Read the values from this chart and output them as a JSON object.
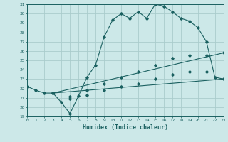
{
  "xlabel": "Humidex (Indice chaleur)",
  "bg_color": "#cce8e8",
  "grid_color": "#aacccc",
  "line_color": "#1a6060",
  "xlim": [
    0,
    23
  ],
  "ylim": [
    19,
    31
  ],
  "xticks": [
    0,
    1,
    2,
    3,
    4,
    5,
    6,
    7,
    8,
    9,
    10,
    11,
    12,
    13,
    14,
    15,
    16,
    17,
    18,
    19,
    20,
    21,
    22,
    23
  ],
  "yticks": [
    19,
    20,
    21,
    22,
    23,
    24,
    25,
    26,
    27,
    28,
    29,
    30,
    31
  ],
  "line1_x": [
    0,
    1,
    2,
    3,
    4,
    5,
    6,
    7,
    8,
    9,
    10,
    11,
    12,
    13,
    14,
    15,
    16,
    17,
    18,
    19,
    20,
    21,
    22,
    23
  ],
  "line1_y": [
    22.2,
    21.8,
    21.5,
    21.5,
    20.5,
    19.3,
    21.2,
    23.2,
    24.5,
    27.5,
    29.3,
    30.0,
    29.5,
    30.2,
    29.5,
    31.0,
    30.8,
    30.2,
    29.5,
    29.2,
    28.5,
    27.0,
    23.2,
    23.0
  ],
  "line2_x": [
    3,
    23
  ],
  "line2_y": [
    21.5,
    25.8
  ],
  "line3_x": [
    3,
    23
  ],
  "line3_y": [
    21.5,
    23.0
  ],
  "marker_x2": [
    3,
    5,
    7,
    9,
    11,
    13,
    15,
    17,
    19,
    21,
    23
  ],
  "marker_y2": [
    21.5,
    21.1,
    21.8,
    22.5,
    23.2,
    23.8,
    24.5,
    25.2,
    25.5,
    25.5,
    25.8
  ],
  "marker_x3": [
    3,
    5,
    7,
    9,
    11,
    13,
    15,
    17,
    19,
    21,
    23
  ],
  "marker_y3": [
    21.5,
    20.9,
    21.3,
    21.8,
    22.2,
    22.5,
    23.0,
    23.5,
    23.8,
    23.8,
    23.0
  ]
}
